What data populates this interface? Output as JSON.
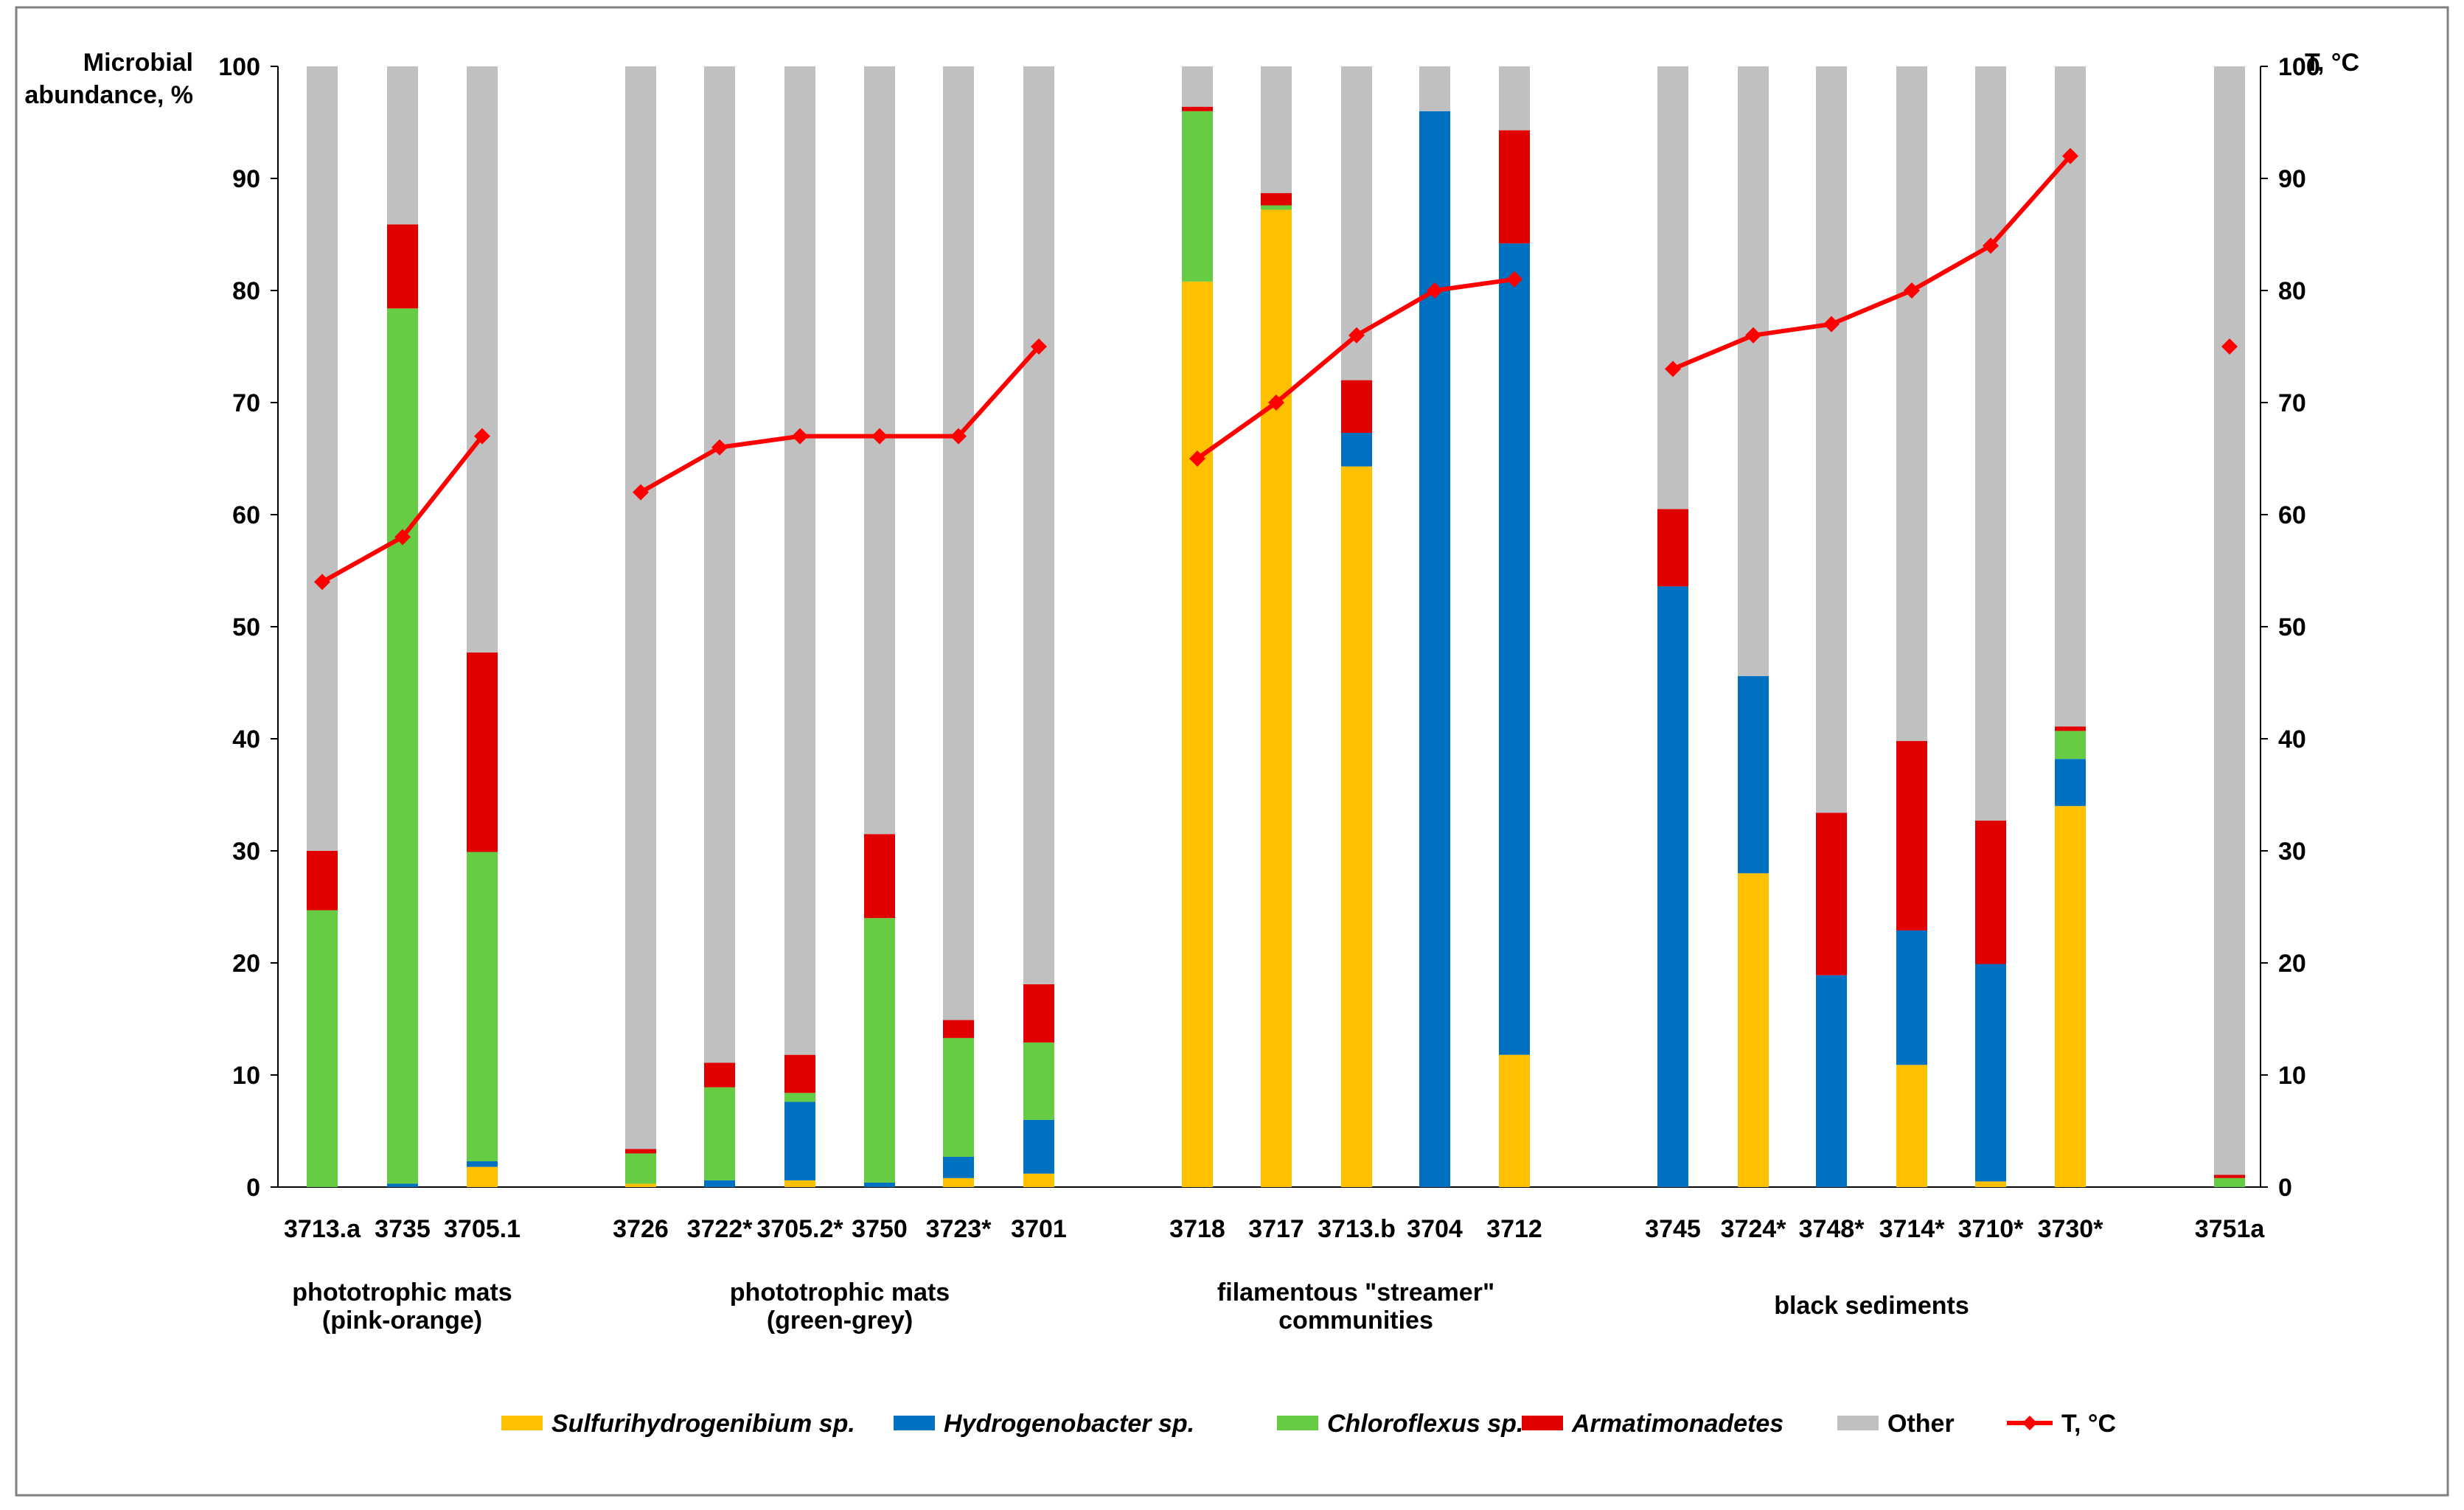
{
  "chart_data": {
    "type": "bar",
    "stacked": true,
    "y_axis": {
      "title_lines": [
        "Microbial",
        "abundance, %"
      ],
      "range": [
        0,
        100
      ],
      "ticks": [
        "0",
        "10",
        "20",
        "30",
        "40",
        "50",
        "60",
        "70",
        "80",
        "90",
        "100"
      ]
    },
    "y2_axis": {
      "title": "T, °C",
      "range": [
        0,
        100
      ],
      "ticks": [
        "0",
        "10",
        "20",
        "30",
        "40",
        "50",
        "60",
        "70",
        "80",
        "90",
        "100"
      ]
    },
    "categories": [
      "3713.a",
      "3735",
      "3705.1",
      "3726",
      "3722*",
      "3705.2*",
      "3750",
      "3723*",
      "3701",
      "3718",
      "3717",
      "3713.b",
      "3704",
      "3712",
      "3745",
      "3724*",
      "3748*",
      "3714*",
      "3710*",
      "3730*",
      "3751a"
    ],
    "groups": [
      {
        "name_lines": [
          "phototrophic mats",
          "(pink-orange)"
        ],
        "categories": [
          "3713.a",
          "3735",
          "3705.1"
        ]
      },
      {
        "name_lines": [
          "phototrophic mats",
          "(green-grey)"
        ],
        "categories": [
          "3726",
          "3722*",
          "3705.2*",
          "3750",
          "3723*",
          "3701"
        ]
      },
      {
        "name_lines": [
          "filamentous \"streamer\"",
          "communities"
        ],
        "categories": [
          "3718",
          "3717",
          "3713.b",
          "3704",
          "3712"
        ]
      },
      {
        "name_lines": [
          "black sediments"
        ],
        "categories": [
          "3745",
          "3724*",
          "3748*",
          "3714*",
          "3710*",
          "3730*"
        ]
      }
    ],
    "series": [
      {
        "name": "Sulfurihydrogenibium sp.",
        "italic": true,
        "color": "#FFC000",
        "values": [
          0,
          0,
          1.8,
          0.3,
          0,
          0.6,
          0,
          0.8,
          1.2,
          80.8,
          87.2,
          64.3,
          0,
          11.8,
          0,
          28,
          0,
          10.9,
          0.5,
          34,
          0
        ]
      },
      {
        "name": "Hydrogenobacter sp.",
        "italic": true,
        "color": "#0070C0",
        "values": [
          0,
          0.3,
          0.5,
          0,
          0.6,
          7,
          0.4,
          1.9,
          4.8,
          0,
          0,
          3,
          96,
          72.4,
          53.6,
          17.6,
          18.9,
          12,
          19.4,
          4.2,
          0
        ]
      },
      {
        "name": "Chloroflexus sp.",
        "italic": true,
        "color": "#66CC44",
        "values": [
          24.7,
          78.1,
          27.6,
          2.7,
          8.3,
          0.8,
          23.6,
          10.6,
          6.9,
          15.2,
          0.4,
          0,
          0,
          0,
          0,
          0,
          0,
          0,
          0,
          2.5,
          0.8
        ]
      },
      {
        "name": "Armatimonadetes",
        "italic": true,
        "color": "#E00000",
        "values": [
          5.3,
          7.5,
          17.8,
          0.4,
          2.2,
          3.4,
          7.5,
          1.6,
          5.2,
          0.4,
          1.1,
          4.7,
          0,
          10.1,
          6.9,
          0,
          14.5,
          16.9,
          12.8,
          0.4,
          0.3
        ]
      },
      {
        "name": "Other",
        "italic": false,
        "color": "#C0C0C0",
        "values": [
          70,
          14.1,
          52.3,
          96.6,
          88.9,
          88.2,
          68.5,
          85.1,
          81.9,
          3.6,
          11.3,
          28,
          4,
          5.7,
          39.5,
          54.4,
          66.6,
          60.2,
          67.3,
          58.9,
          98.9
        ]
      }
    ],
    "temperature": {
      "name": "T, °C",
      "color": "#FF0000",
      "segments": [
        {
          "categories": [
            "3713.a",
            "3735",
            "3705.1"
          ],
          "values": [
            54,
            58,
            67
          ]
        },
        {
          "categories": [
            "3726",
            "3722*",
            "3705.2*",
            "3750",
            "3723*",
            "3701"
          ],
          "values": [
            62,
            66,
            67,
            67,
            67,
            75
          ]
        },
        {
          "categories": [
            "3718",
            "3717",
            "3713.b",
            "3704",
            "3712"
          ],
          "values": [
            65,
            70,
            76,
            80,
            81
          ]
        },
        {
          "categories": [
            "3745",
            "3724*",
            "3748*",
            "3714*",
            "3710*",
            "3730*"
          ],
          "values": [
            73,
            76,
            77,
            80,
            84,
            92
          ]
        },
        {
          "categories": [
            "3751a"
          ],
          "values": [
            75
          ]
        }
      ]
    },
    "legend": {
      "position": "bottom",
      "items": [
        "Sulfurihydrogenibium sp.",
        "Hydrogenobacter sp.",
        "Chloroflexus sp.",
        "Armatimonadetes",
        "Other",
        "T, °C"
      ]
    }
  }
}
